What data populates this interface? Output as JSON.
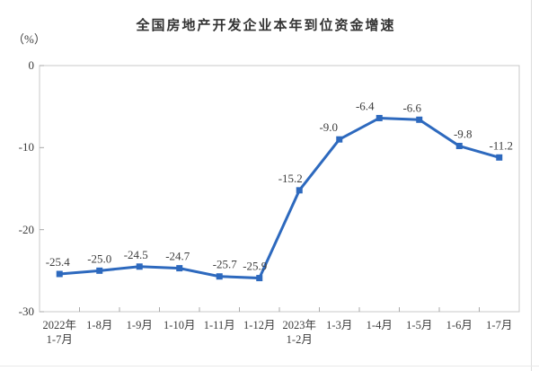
{
  "title": "全国房地产开发企业本年到位资金增速",
  "y_axis_unit": "（%）",
  "colors": {
    "line": "#2d69be",
    "marker": "#2d69be",
    "data_label": "#3c3c3c",
    "axis_border": "#c9c9c9",
    "tick": "#a8a8a8",
    "tick_label": "#3c3c3c",
    "title": "#333333",
    "background": "#ffffff"
  },
  "chart_data": {
    "type": "line",
    "title": "全国房地产开发企业本年到位资金增速",
    "ylabel": "（%）",
    "xlabel": "",
    "categories": [
      "2022年\n1-7月",
      "1-8月",
      "1-9月",
      "1-10月",
      "1-11月",
      "1-12月",
      "2023年\n1-2月",
      "1-3月",
      "1-4月",
      "1-5月",
      "1-6月",
      "1-7月"
    ],
    "values": [
      -25.4,
      -25.0,
      -24.5,
      -24.7,
      -25.7,
      -25.9,
      -15.2,
      -9.0,
      -6.4,
      -6.6,
      -9.8,
      -11.2
    ],
    "data_labels": [
      "-25.4",
      "-25.0",
      "-24.5",
      "-24.7",
      "-25.7",
      "-25.9",
      "-15.2",
      "-9.0",
      "-6.4",
      "-6.6",
      "-9.8",
      "-11.2"
    ],
    "ylim": [
      -30,
      0
    ],
    "yticks": [
      0,
      -10,
      -20,
      -30
    ],
    "ytick_labels": [
      "0",
      "-10",
      "-20",
      "-30"
    ],
    "grid": false,
    "legend": false,
    "marker": "square"
  }
}
